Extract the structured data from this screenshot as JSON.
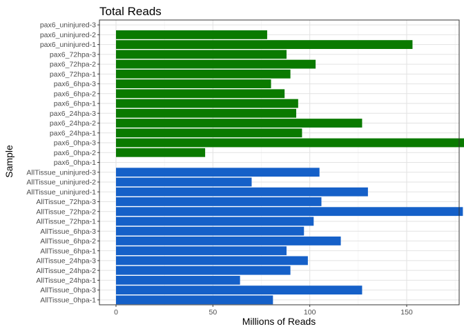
{
  "chart_data": {
    "type": "bar",
    "orientation": "horizontal",
    "title": "Total Reads",
    "xlabel": "Millions of Reads",
    "ylabel": "Sample",
    "xlim": [
      0,
      190
    ],
    "xticks": [
      0,
      50,
      100,
      150
    ],
    "grid": true,
    "legend": "none",
    "colors": {
      "pax6": "#0a7a00",
      "AllTissue": "#1560c8",
      "grid_major": "#e2e2e2",
      "grid_minor": "#f1f1f1",
      "border": "#333333"
    },
    "categories": [
      "pax6_uninjured-3",
      "pax6_uninjured-2",
      "pax6_uninjured-1",
      "pax6_72hpa-3",
      "pax6_72hpa-2",
      "pax6_72hpa-1",
      "pax6_6hpa-3",
      "pax6_6hpa-2",
      "pax6_6hpa-1",
      "pax6_24hpa-3",
      "pax6_24hpa-2",
      "pax6_24hpa-1",
      "pax6_0hpa-3",
      "pax6_0hpa-2",
      "pax6_0hpa-1",
      "AllTissue_uninjured-3",
      "AllTissue_uninjured-2",
      "AllTissue_uninjured-1",
      "AllTissue_72hpa-3",
      "AllTissue_72hpa-2",
      "AllTissue_72hpa-1",
      "AllTissue_6hpa-3",
      "AllTissue_6hpa-2",
      "AllTissue_6hpa-1",
      "AllTissue_24hpa-3",
      "AllTissue_24hpa-2",
      "AllTissue_24hpa-1",
      "AllTissue_0hpa-3",
      "AllTissue_0hpa-1"
    ],
    "values": [
      0,
      78,
      153,
      88,
      103,
      90,
      80,
      87,
      94,
      93,
      127,
      96,
      181,
      46,
      0,
      105,
      70,
      130,
      106,
      179,
      102,
      97,
      116,
      88,
      99,
      90,
      64,
      127,
      81
    ],
    "groups": [
      "pax6",
      "pax6",
      "pax6",
      "pax6",
      "pax6",
      "pax6",
      "pax6",
      "pax6",
      "pax6",
      "pax6",
      "pax6",
      "pax6",
      "pax6",
      "pax6",
      "pax6",
      "AllTissue",
      "AllTissue",
      "AllTissue",
      "AllTissue",
      "AllTissue",
      "AllTissue",
      "AllTissue",
      "AllTissue",
      "AllTissue",
      "AllTissue",
      "AllTissue",
      "AllTissue",
      "AllTissue",
      "AllTissue"
    ]
  }
}
